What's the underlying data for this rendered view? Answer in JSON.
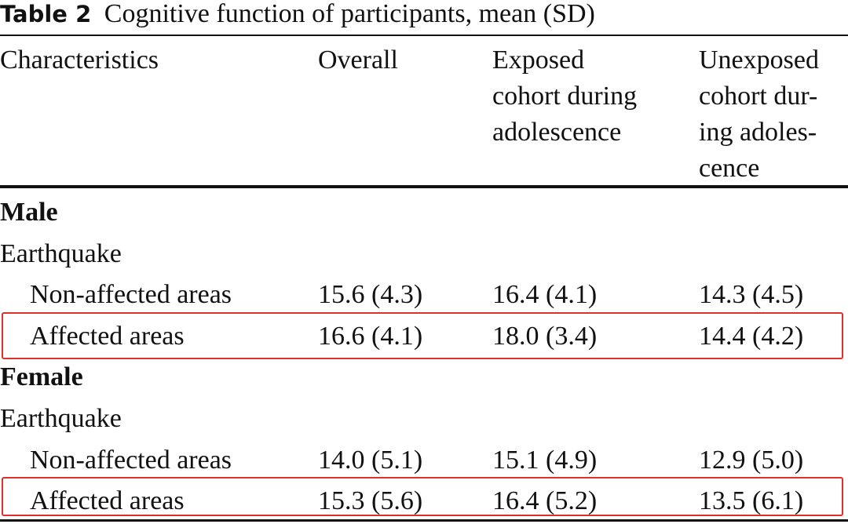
{
  "title": {
    "label": "Table 2",
    "text": "Cognitive function of participants, mean (SD)"
  },
  "table": {
    "header": [
      [
        "Characteristics"
      ],
      [
        "Overall"
      ],
      [
        "Exposed",
        "cohort during",
        "adolescence"
      ],
      [
        "Unexposed",
        "cohort dur-",
        "ing adoles-",
        "cence"
      ]
    ],
    "sections": [
      {
        "name": "Male",
        "subheading": "Earthquake",
        "rows": [
          [
            "Non-affected areas",
            "15.6 (4.3)",
            "16.4 (4.1)",
            "14.3 (4.5)"
          ],
          [
            "Affected areas",
            "16.6 (4.1)",
            "18.0 (3.4)",
            "14.4 (4.2)"
          ]
        ]
      },
      {
        "name": "Female",
        "subheading": "Earthquake",
        "rows": [
          [
            "Non-affected areas",
            "14.0 (5.1)",
            "15.1 (4.9)",
            "12.9 (5.0)"
          ],
          [
            "Affected areas",
            "15.3 (5.6)",
            "16.4 (5.2)",
            "13.5 (6.1)"
          ]
        ]
      }
    ]
  }
}
